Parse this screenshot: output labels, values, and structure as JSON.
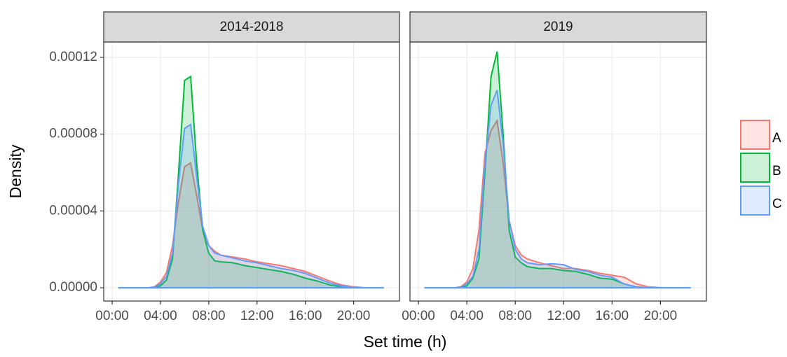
{
  "chart_data": {
    "type": "density",
    "x_label": "Set time (h)",
    "y_label": "Density",
    "xlim": [
      -0.7,
      23.8
    ],
    "ylim": [
      -6.9e-06,
      0.000128
    ],
    "xticks": [
      {
        "value": 0,
        "label": "00:00"
      },
      {
        "value": 4,
        "label": "04:00"
      },
      {
        "value": 8,
        "label": "08:00"
      },
      {
        "value": 12,
        "label": "12:00"
      },
      {
        "value": 16,
        "label": "16:00"
      },
      {
        "value": 20,
        "label": "20:00"
      }
    ],
    "yticks": [
      {
        "value": 0,
        "label": "0.00000"
      },
      {
        "value": 4e-05,
        "label": "0.00004"
      },
      {
        "value": 8e-05,
        "label": "0.00008"
      },
      {
        "value": 0.00012,
        "label": "0.00012"
      }
    ],
    "grid": true,
    "legend": "right",
    "x": [
      0.5,
      2,
      3,
      3.5,
      4,
      4.5,
      5,
      5.5,
      6,
      6.5,
      7,
      7.5,
      8,
      8.5,
      9,
      10,
      11,
      12,
      13,
      14,
      15,
      16,
      17,
      18,
      19,
      20,
      21,
      22.5
    ],
    "facets": [
      {
        "title": "2014-2018",
        "series": [
          {
            "name": "A",
            "color": "#F8766D",
            "values": [
              0,
              0,
              0,
              5e-07,
              3e-06,
              8e-06,
              2.2e-05,
              4.5e-05,
              6.3e-05,
              6.5e-05,
              4.8e-05,
              3e-05,
              2.2e-05,
              1.9e-05,
              1.7e-05,
              1.6e-05,
              1.5e-05,
              1.35e-05,
              1.25e-05,
              1.15e-05,
              1e-05,
              8.5e-06,
              6e-06,
              3.5e-06,
              1.5e-06,
              5e-07,
              0,
              0
            ]
          },
          {
            "name": "B",
            "color": "#00BA38",
            "values": [
              0,
              0,
              0,
              3e-07,
              1e-06,
              4e-06,
              1.5e-05,
              6e-05,
              0.000108,
              0.00011,
              6.5e-05,
              3e-05,
              1.8e-05,
              1.4e-05,
              1.35e-05,
              1.3e-05,
              1.15e-05,
              1.05e-05,
              9.5e-06,
              8.5e-06,
              7e-06,
              5e-06,
              3.5e-06,
              1.5e-06,
              5e-07,
              2e-07,
              0,
              0
            ]
          },
          {
            "name": "C",
            "color": "#619CFF",
            "values": [
              0,
              0,
              0,
              4e-07,
              2e-06,
              6e-06,
              1.8e-05,
              5.5e-05,
              8.3e-05,
              8.5e-05,
              5.8e-05,
              3.2e-05,
              2.2e-05,
              1.8e-05,
              1.7e-05,
              1.55e-05,
              1.4e-05,
              1.3e-05,
              1.15e-05,
              1e-05,
              9e-06,
              7.5e-06,
              5e-06,
              2.5e-06,
              1e-06,
              2e-07,
              0,
              0
            ]
          }
        ]
      },
      {
        "title": "2019",
        "series": [
          {
            "name": "A",
            "color": "#F8766D",
            "values": [
              0,
              0,
              0,
              5e-07,
              3e-06,
              1e-05,
              3e-05,
              7e-05,
              8.2e-05,
              8.7e-05,
              6.5e-05,
              3.5e-05,
              2.2e-05,
              1.7e-05,
              1.5e-05,
              1.3e-05,
              1.15e-05,
              1e-05,
              1e-05,
              9e-06,
              7.5e-06,
              6.5e-06,
              5.5e-06,
              2e-06,
              5e-07,
              1e-07,
              0,
              0
            ]
          },
          {
            "name": "B",
            "color": "#00BA38",
            "values": [
              0,
              0,
              0,
              3e-07,
              1e-06,
              5e-06,
              1.5e-05,
              6e-05,
              0.00011,
              0.000123,
              8e-05,
              3e-05,
              1.6e-05,
              1.3e-05,
              1.1e-05,
              1e-05,
              1e-05,
              9e-06,
              8.5e-06,
              7e-06,
              5e-06,
              4.5e-06,
              2e-06,
              5e-07,
              0,
              0,
              0,
              0
            ]
          },
          {
            "name": "C",
            "color": "#619CFF",
            "values": [
              0,
              0,
              0,
              4e-07,
              2e-06,
              6e-06,
              2e-05,
              6.5e-05,
              9.5e-05,
              0.000103,
              7.5e-05,
              3.5e-05,
              2e-05,
              1.5e-05,
              1.3e-05,
              1.2e-05,
              1.25e-05,
              1.2e-05,
              9.5e-06,
              8.5e-06,
              6.5e-06,
              5.5e-06,
              2e-06,
              5e-07,
              0,
              0,
              0,
              0
            ]
          }
        ]
      }
    ]
  }
}
